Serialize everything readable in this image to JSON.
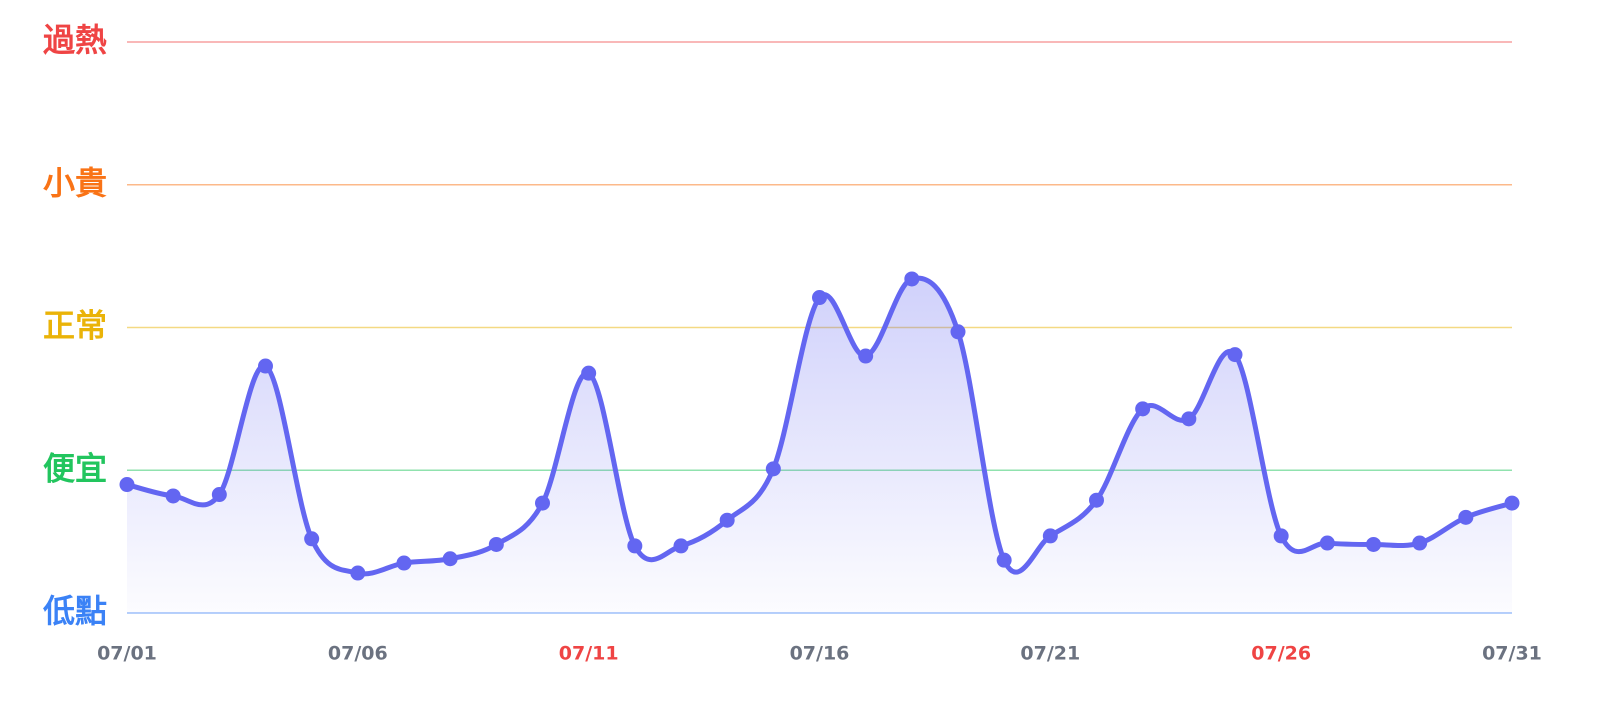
{
  "chart_data": {
    "type": "line",
    "categories": [
      "07/01",
      null,
      null,
      null,
      null,
      "07/06",
      null,
      null,
      null,
      null,
      "07/11",
      null,
      null,
      null,
      null,
      "07/16",
      null,
      null,
      null,
      null,
      "07/21",
      null,
      null,
      null,
      null,
      "07/26",
      null,
      null,
      null,
      null,
      "07/31"
    ],
    "values": [
      0.9,
      0.82,
      0.83,
      1.73,
      0.52,
      0.28,
      0.35,
      0.38,
      0.48,
      0.77,
      1.68,
      0.47,
      0.47,
      0.65,
      1.01,
      2.21,
      1.8,
      2.34,
      1.97,
      0.37,
      0.54,
      0.79,
      1.43,
      1.36,
      1.81,
      0.54,
      0.49,
      0.48,
      0.49,
      0.67,
      0.77
    ],
    "color": "#6366f1",
    "ylim": [
      0,
      4
    ],
    "yticks": [
      {
        "value": 0,
        "label": "低點",
        "color": "#3b82f6"
      },
      {
        "value": 1,
        "label": "便宜",
        "color": "#22c55e"
      },
      {
        "value": 2,
        "label": "正常",
        "color": "#eab308"
      },
      {
        "value": 3,
        "label": "小貴",
        "color": "#f97316"
      },
      {
        "value": 4,
        "label": "過熱",
        "color": "#ef4444"
      }
    ],
    "grid": true,
    "x_label_color": "#6b7280",
    "highlight_color": "#ef4444",
    "highlight_indices": [
      10,
      25
    ]
  }
}
